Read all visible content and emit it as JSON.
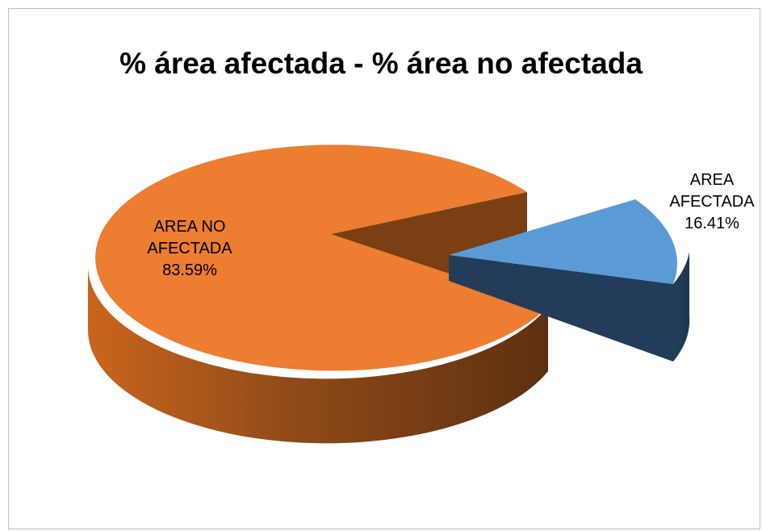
{
  "chart_data": {
    "type": "pie",
    "title": "% área afectada - % área no afectada",
    "slices": [
      {
        "name_lines": [
          "AREA NO",
          "AFECTADA"
        ],
        "percent_label": "83.59%",
        "value": 83.59,
        "color": "#ed7d31",
        "exploded": false
      },
      {
        "name_lines": [
          "AREA",
          "AFECTADA"
        ],
        "percent_label": "16.41%",
        "value": 16.41,
        "color": "#5b9bd5",
        "exploded": true
      }
    ],
    "style": "3d-exploded",
    "legend": "none"
  }
}
